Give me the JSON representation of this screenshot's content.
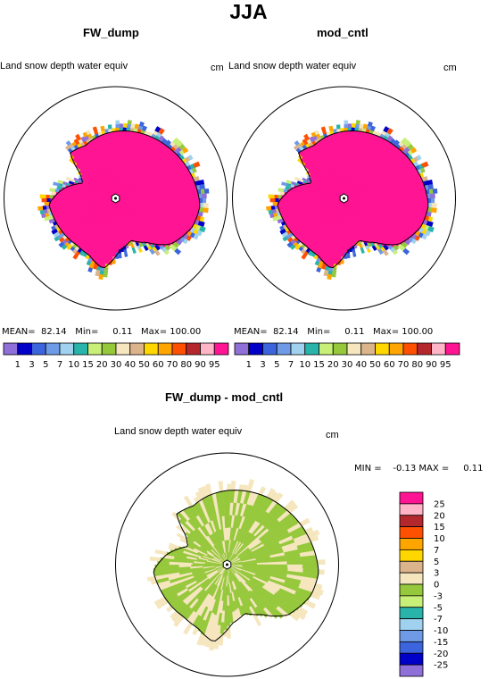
{
  "title": "JJA",
  "panels": [
    {
      "title": "FW_dump",
      "label": "Land snow depth water equiv",
      "units": "cm",
      "stats": {
        "mean_label": "MEAN=",
        "mean": "82.14",
        "min_label": "Min=",
        "min": "0.11",
        "max_label": "Max=",
        "max": "100.00"
      }
    },
    {
      "title": "mod_cntl",
      "label": "Land snow depth water equiv",
      "units": "cm",
      "stats": {
        "mean_label": "MEAN=",
        "mean": "82.14",
        "min_label": "Min=",
        "min": "0.11",
        "max_label": "Max=",
        "max": "100.00"
      }
    },
    {
      "title": "FW_dump - mod_cntl",
      "label": "Land snow depth water equiv",
      "units": "cm",
      "stats": {
        "min_label": "MIN =",
        "min": "-0.13",
        "max_label": "MAX =",
        "max": "0.11"
      }
    }
  ],
  "chart_data": [
    {
      "type": "heatmap",
      "projection": "south-polar-stereographic",
      "title": "FW_dump",
      "colorbar": {
        "orientation": "horizontal",
        "ticks": [
          "1",
          "3",
          "5",
          "7",
          "10",
          "15",
          "20",
          "30",
          "40",
          "50",
          "60",
          "70",
          "80",
          "90",
          "95"
        ],
        "colors": [
          "#8f6fd8",
          "#0000c8",
          "#3c64dc",
          "#6e9ae6",
          "#a0d2f0",
          "#28b4aa",
          "#c8f078",
          "#96c83c",
          "#f5e6be",
          "#dcb48c",
          "#ffd700",
          "#ffa500",
          "#ff5000",
          "#b4282d",
          "#ffb4c8",
          "#ff1493"
        ]
      }
    },
    {
      "type": "heatmap",
      "projection": "south-polar-stereographic",
      "title": "mod_cntl",
      "colorbar": {
        "orientation": "horizontal",
        "ticks": [
          "1",
          "3",
          "5",
          "7",
          "10",
          "15",
          "20",
          "30",
          "40",
          "50",
          "60",
          "70",
          "80",
          "90",
          "95"
        ],
        "colors": [
          "#8f6fd8",
          "#0000c8",
          "#3c64dc",
          "#6e9ae6",
          "#a0d2f0",
          "#28b4aa",
          "#c8f078",
          "#96c83c",
          "#f5e6be",
          "#dcb48c",
          "#ffd700",
          "#ffa500",
          "#ff5000",
          "#b4282d",
          "#ffb4c8",
          "#ff1493"
        ]
      }
    },
    {
      "type": "heatmap",
      "projection": "south-polar-stereographic",
      "title": "FW_dump - mod_cntl",
      "colorbar": {
        "orientation": "vertical",
        "ticks": [
          "25",
          "20",
          "15",
          "10",
          "7",
          "5",
          "3",
          "0",
          "-3",
          "-5",
          "-7",
          "-10",
          "-15",
          "-20",
          "-25"
        ],
        "colors": [
          "#ff1493",
          "#ffb4c8",
          "#b4282d",
          "#ff5000",
          "#ffa500",
          "#ffd700",
          "#dcb48c",
          "#f5e6be",
          "#96c83c",
          "#c8f078",
          "#28b4aa",
          "#a0d2f0",
          "#6e9ae6",
          "#3c64dc",
          "#0000c8",
          "#8f6fd8"
        ]
      }
    }
  ]
}
